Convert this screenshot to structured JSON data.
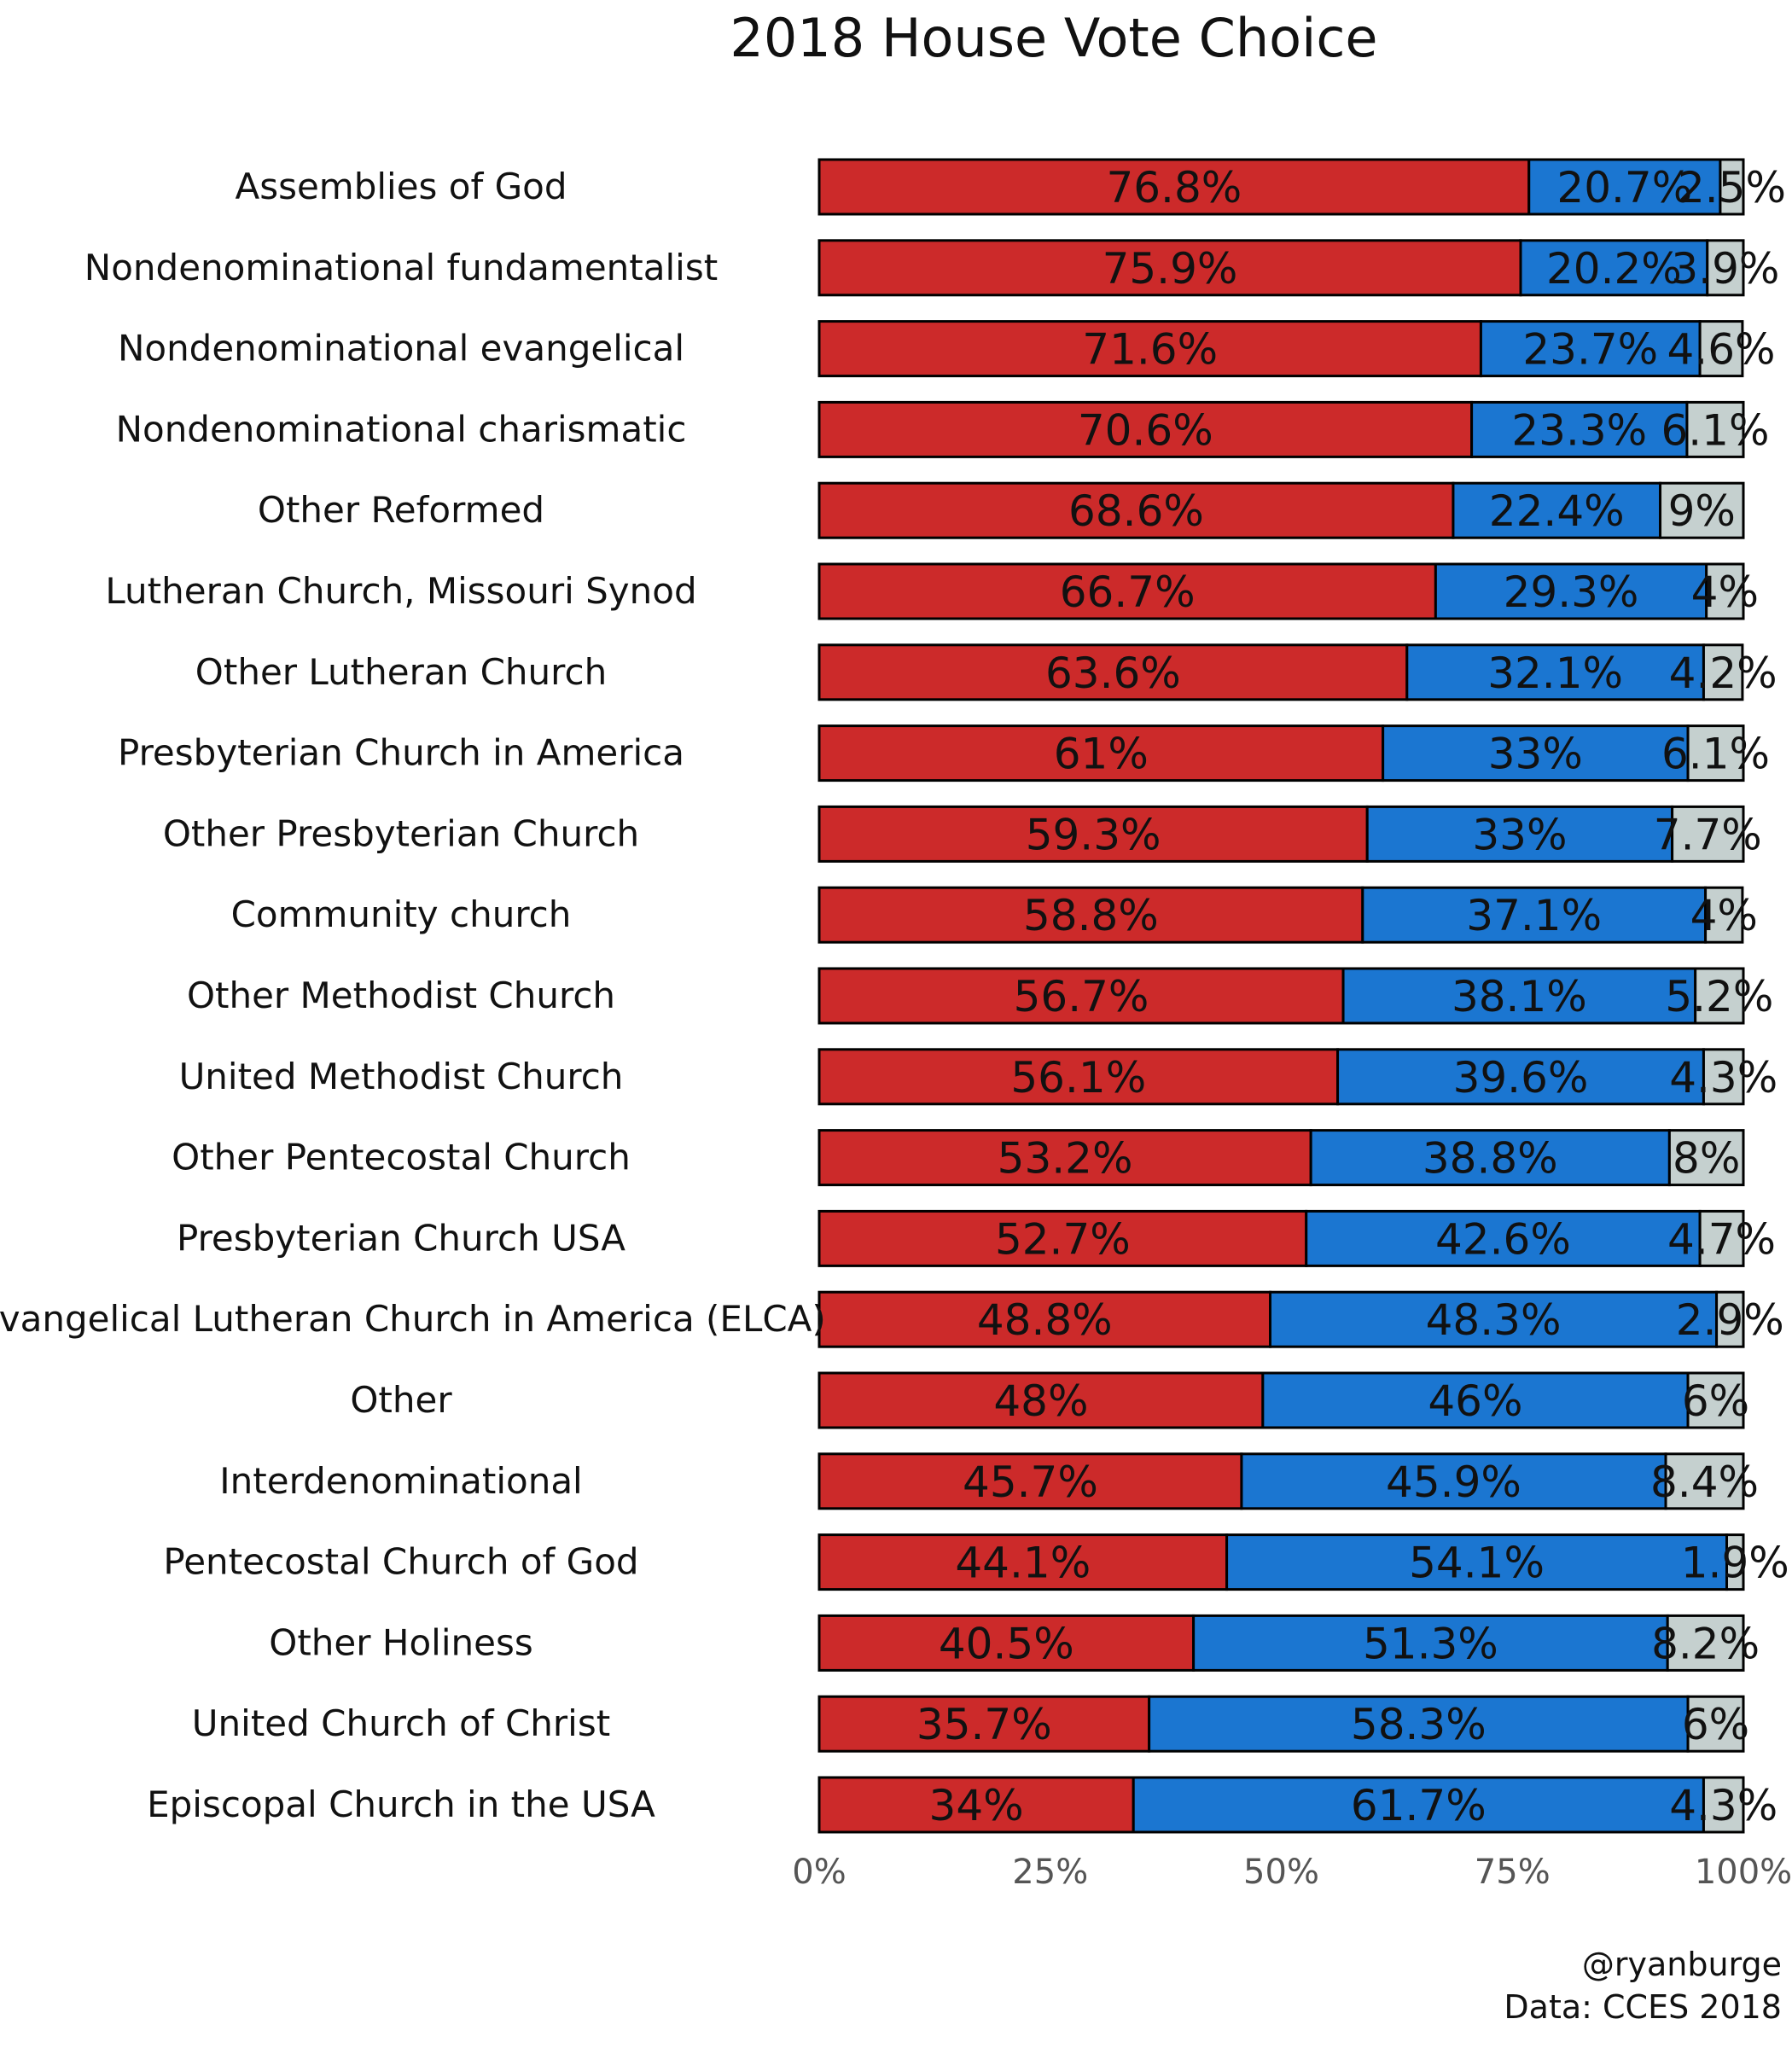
{
  "chart_data": {
    "type": "bar",
    "orientation": "horizontal",
    "stacked": true,
    "title": "2018 House Vote Choice",
    "xlabel": "",
    "ylabel": "",
    "xlim": [
      0,
      100
    ],
    "x_ticks": [
      "0%",
      "25%",
      "50%",
      "75%",
      "100%"
    ],
    "categories": [
      "Assemblies of God",
      "Nondenominational fundamentalist",
      "Nondenominational evangelical",
      "Nondenominational charismatic",
      "Other Reformed",
      "Lutheran Church, Missouri Synod",
      "Other Lutheran Church",
      "Presbyterian Church in America",
      "Other Presbyterian Church",
      "Community church",
      "Other Methodist Church",
      "United Methodist Church",
      "Other Pentecostal Church",
      "Presbyterian Church USA",
      "Evangelical Lutheran Church in America (ELCA)",
      "Other",
      "Interdenominational",
      "Pentecostal Church of God",
      "Other Holiness",
      "United Church of Christ",
      "Episcopal Church in the USA"
    ],
    "series": [
      {
        "color": "#cc2a2a",
        "values": [
          76.8,
          75.9,
          71.6,
          70.6,
          68.6,
          66.7,
          63.6,
          61,
          59.3,
          58.8,
          56.7,
          56.1,
          53.2,
          52.7,
          48.8,
          48,
          45.7,
          44.1,
          40.5,
          35.7,
          34
        ],
        "labels": [
          "76.8%",
          "75.9%",
          "71.6%",
          "70.6%",
          "68.6%",
          "66.7%",
          "63.6%",
          "61%",
          "59.3%",
          "58.8%",
          "56.7%",
          "56.1%",
          "53.2%",
          "52.7%",
          "48.8%",
          "48%",
          "45.7%",
          "44.1%",
          "40.5%",
          "35.7%",
          "34%"
        ]
      },
      {
        "color": "#1b76d1",
        "values": [
          20.7,
          20.2,
          23.7,
          23.3,
          22.4,
          29.3,
          32.1,
          33,
          33,
          37.1,
          38.1,
          39.6,
          38.8,
          42.6,
          48.3,
          46,
          45.9,
          54.1,
          51.3,
          58.3,
          61.7
        ],
        "labels": [
          "20.7%",
          "20.2%",
          "23.7%",
          "23.3%",
          "22.4%",
          "29.3%",
          "32.1%",
          "33%",
          "33%",
          "37.1%",
          "38.1%",
          "39.6%",
          "38.8%",
          "42.6%",
          "48.3%",
          "46%",
          "45.9%",
          "54.1%",
          "51.3%",
          "58.3%",
          "61.7%"
        ]
      },
      {
        "color": "#c5d0cf",
        "values": [
          2.5,
          3.9,
          4.6,
          6.1,
          9,
          4,
          4.2,
          6.1,
          7.7,
          4,
          5.2,
          4.3,
          8,
          4.7,
          2.9,
          6,
          8.4,
          1.9,
          8.2,
          6,
          4.3
        ],
        "labels": [
          "2.5%",
          "3.9%",
          "4.6%",
          "6.1%",
          "9%",
          "4%",
          "4.2%",
          "6.1%",
          "7.7%",
          "4%",
          "5.2%",
          "4.3%",
          "8%",
          "4.7%",
          "2.9%",
          "6%",
          "8.4%",
          "1.9%",
          "8.2%",
          "6%",
          "4.3%"
        ]
      }
    ],
    "grid": false,
    "legend": "none"
  },
  "credits": {
    "handle": "@ryanburge",
    "source": "Data: CCES 2018"
  }
}
